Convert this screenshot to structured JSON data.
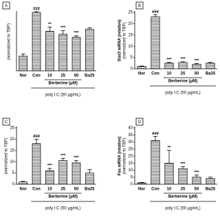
{
  "chart_data": [
    {
      "type": "bar",
      "panel": "A",
      "ylabel": [
        "(normalized to TBP)"
      ],
      "categories": [
        "Nor",
        "Con",
        "10",
        "25",
        "50",
        "Ba25"
      ],
      "values": [
        1.0,
        4.0,
        2.7,
        2.5,
        2.3,
        2.85
      ],
      "errors": [
        0.15,
        0.05,
        0.3,
        0.25,
        0.1,
        0.1
      ],
      "annotations": [
        null,
        "###",
        "**",
        "***",
        "***",
        null
      ],
      "group_label": "Berberine (μM)",
      "treatment_label": "poly I:C (50 μg/mL)",
      "ylim": [
        0,
        4
      ]
    },
    {
      "type": "bar",
      "panel": "B",
      "ylabel": [
        "Stat3 mRNA (relative)",
        "(normalized to TBP)"
      ],
      "categories": [
        "Nor",
        "Con",
        "10",
        "25",
        "50",
        "Ba25"
      ],
      "values": [
        1.0,
        23,
        2.5,
        2.8,
        2.0,
        2.5
      ],
      "errors": [
        0.2,
        1.0,
        0.3,
        0.3,
        0.3,
        0.3
      ],
      "annotations": [
        null,
        "###",
        "***",
        "***",
        "***",
        null
      ],
      "group_label": "Berberine (μM)",
      "treatment_label": "poly I:C (50 μg/mL)",
      "ylim": [
        0,
        25
      ],
      "yticks": [
        0,
        5,
        10,
        15,
        20,
        25
      ]
    },
    {
      "type": "bar",
      "panel": "C",
      "ylabel": [
        "(normalized to TBP)"
      ],
      "categories": [
        "Nor",
        "Con",
        "10",
        "25",
        "50",
        "Ba25"
      ],
      "values": [
        1.0,
        18,
        6.0,
        10.5,
        9.5,
        5.0
      ],
      "errors": [
        0.3,
        2.0,
        1.0,
        1.0,
        1.0,
        1.5
      ],
      "annotations": [
        null,
        "###",
        "***",
        "***",
        "***",
        null
      ],
      "group_label": "Berberine (μM)",
      "treatment_label": "poly I:C (50 μg/mL)",
      "ylim": [
        0,
        25
      ],
      "yticks": [
        0,
        5,
        10,
        15,
        20,
        25
      ]
    },
    {
      "type": "bar",
      "panel": "D",
      "ylabel": [
        "Fas mRNA (relative)",
        "(normalized to TBP)"
      ],
      "categories": [
        "Nor",
        "Con",
        "10",
        "25",
        "50",
        "Ba25"
      ],
      "values": [
        1.0,
        31,
        15,
        11,
        5.0,
        4.0
      ],
      "errors": [
        0.3,
        3.0,
        9.0,
        1.5,
        1.5,
        1.0
      ],
      "annotations": [
        null,
        "###",
        "**",
        "***",
        "***",
        null
      ],
      "group_label": "Berberine (μM)",
      "treatment_label": "poly I:C (50 μg/mL)",
      "ylim": [
        0,
        40
      ],
      "yticks": [
        0,
        5,
        10,
        15,
        20,
        25,
        30,
        35,
        40
      ]
    }
  ]
}
